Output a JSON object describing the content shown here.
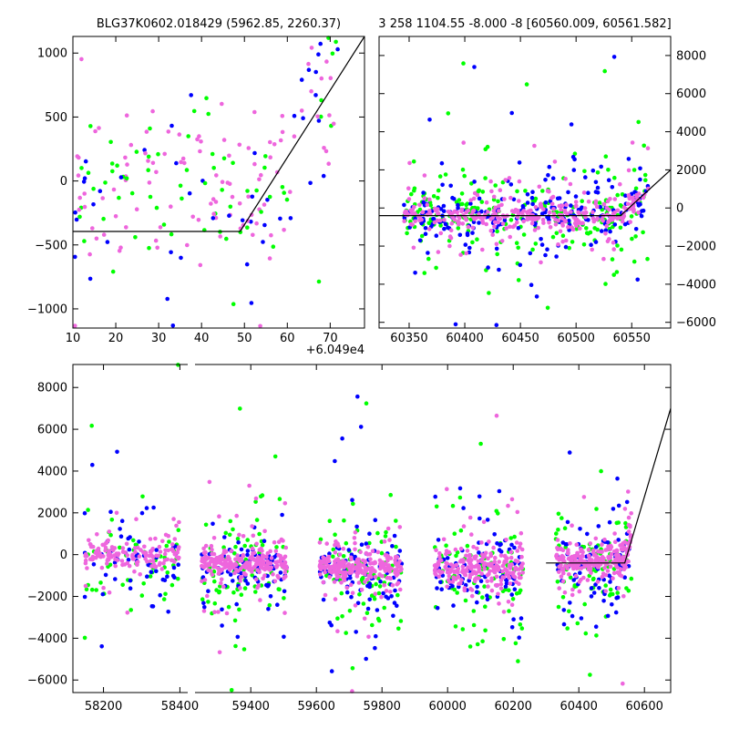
{
  "colors": {
    "green": "#00ff00",
    "blue": "#0000ff",
    "pink": "#ee66dd",
    "model": "#000000"
  },
  "chart_data": [
    {
      "id": "zoom",
      "type": "scatter",
      "title": "BLG37K0602.018429 (5962.85, 2260.37)",
      "xlim": [
        10,
        78
      ],
      "ylim": [
        -1150,
        1130
      ],
      "xticks": [
        10,
        20,
        30,
        40,
        50,
        60,
        70
      ],
      "yticks": [
        -1000,
        -500,
        0,
        500,
        1000
      ],
      "x_offset_label": "+6.049e4",
      "model_line": [
        [
          10,
          -395
        ],
        [
          49,
          -395
        ],
        [
          78,
          1130
        ]
      ]
    },
    {
      "id": "season",
      "type": "scatter",
      "title": "3 258 1104.55 -8.000 -8 [60560.009, 60561.582]",
      "xlim": [
        60323,
        60585
      ],
      "ylim": [
        -6300,
        9000
      ],
      "xticks": [
        60350,
        60400,
        60450,
        60500,
        60550
      ],
      "yticks": [
        -6000,
        -4000,
        -2000,
        0,
        2000,
        4000,
        6000,
        8000
      ],
      "model_line": [
        [
          60323,
          -400
        ],
        [
          60540,
          -400
        ],
        [
          60585,
          2000
        ]
      ]
    },
    {
      "id": "full",
      "type": "scatter",
      "xlim_left": [
        58120,
        58430
      ],
      "xlim_right": [
        59230,
        60680
      ],
      "ylim": [
        -6600,
        9100
      ],
      "xticks_left": [
        58200,
        58400
      ],
      "xticks_right": [
        59400,
        59600,
        59800,
        60000,
        60200,
        60400,
        60600
      ],
      "yticks": [
        -6000,
        -4000,
        -2000,
        0,
        2000,
        4000,
        6000,
        8000
      ],
      "model_line": [
        [
          60300,
          -400
        ],
        [
          60540,
          -400
        ],
        [
          60680,
          7000
        ]
      ],
      "seasons": [
        {
          "x": [
            58150,
            58400
          ],
          "center": 0
        },
        {
          "x": [
            59250,
            59510
          ],
          "center": -400
        },
        {
          "x": [
            59610,
            59860
          ],
          "center": -600
        },
        {
          "x": [
            59960,
            60230
          ],
          "center": -600
        },
        {
          "x": [
            60330,
            60560
          ],
          "center": -300
        }
      ]
    }
  ]
}
